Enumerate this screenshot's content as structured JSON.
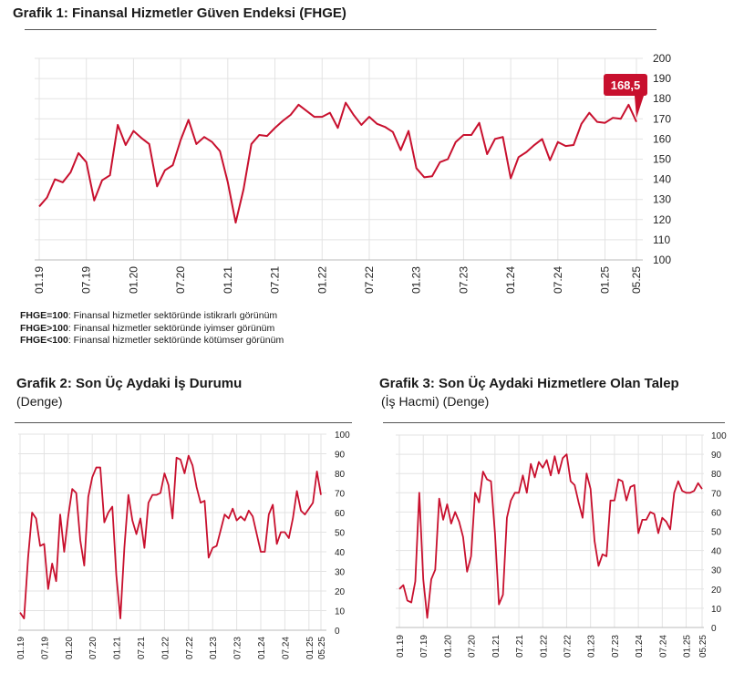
{
  "chart1_title": "Grafik 1: Finansal Hizmetler Güven Endeksi (FHGE)",
  "chart2_title": "Grafik 2: Son Üç Aydaki İş Durumu",
  "chart2_subtitle": "(Denge)",
  "chart3_title": "Grafik 3: Son Üç Aydaki Hizmetlere Olan Talep",
  "chart3_subtitle": "(İş Hacmi) (Denge)",
  "notes": [
    {
      "key": "FHGE=100",
      "text": ": Finansal hizmetler sektöründe istikrarlı görünüm"
    },
    {
      "key": "FHGE>100",
      "text": ": Finansal hizmetler sektöründe iyimser görünüm"
    },
    {
      "key": "FHGE<100",
      "text": ": Finansal hizmetler sektöründe kötümser görünüm"
    }
  ],
  "callout": "168,5",
  "colors": {
    "line": "#c8102e",
    "callout_bg": "#c8102e"
  },
  "chart_data": [
    {
      "type": "line",
      "title": "Grafik 1: Finansal Hizmetler Güven Endeksi (FHGE)",
      "x_ticks": [
        "01.19",
        "07.19",
        "01.20",
        "07.20",
        "01.21",
        "07.21",
        "01.22",
        "07.22",
        "01.23",
        "07.23",
        "01.24",
        "07.24",
        "01.25",
        "05.25"
      ],
      "ylim": [
        100,
        200
      ],
      "y_ticks": [
        100,
        110,
        120,
        130,
        140,
        150,
        160,
        170,
        180,
        190,
        200
      ],
      "grid": true,
      "values": [
        126.5,
        131,
        140,
        138.5,
        143.5,
        153,
        148.5,
        129.5,
        139.5,
        142,
        167,
        157,
        164,
        160.5,
        157.5,
        136.5,
        144.5,
        147,
        159.5,
        169.5,
        157.5,
        161,
        158.5,
        154,
        138.5,
        118.5,
        135,
        157.5,
        162,
        161.5,
        165.5,
        169,
        172,
        177,
        174,
        171,
        171,
        173,
        165.5,
        178,
        172,
        167,
        171,
        167.5,
        166,
        163.5,
        154.5,
        164,
        145.5,
        141,
        141.5,
        148.5,
        150,
        158.5,
        162,
        162,
        168,
        152.5,
        160,
        161,
        140.5,
        151,
        153.5,
        157,
        160,
        149.5,
        158.5,
        156.5,
        157,
        167.5,
        173,
        168.5,
        168,
        170.5,
        170,
        177,
        168.5
      ]
    },
    {
      "type": "line",
      "title": "Grafik 2: Son Üç Aydaki İş Durumu",
      "x_ticks": [
        "01.19",
        "07.19",
        "01.20",
        "07.20",
        "01.21",
        "07.21",
        "01.22",
        "07.22",
        "01.23",
        "07.23",
        "01.24",
        "07.24",
        "01.25",
        "05.25"
      ],
      "ylim": [
        0,
        100
      ],
      "y_ticks": [
        0,
        10,
        20,
        30,
        40,
        50,
        60,
        70,
        80,
        90,
        100
      ],
      "grid": true,
      "values": [
        9,
        6,
        37,
        60,
        57,
        43,
        44,
        21,
        34,
        25,
        59,
        40,
        58,
        72,
        70,
        46,
        33,
        68,
        78,
        83,
        83,
        55,
        60,
        63,
        28,
        6,
        42,
        69,
        56,
        49,
        57,
        42,
        65,
        69,
        69,
        70,
        80,
        74,
        57,
        88,
        87,
        80,
        89,
        84,
        73,
        65,
        66,
        37,
        42,
        43,
        51,
        59,
        57,
        62,
        56,
        58,
        56,
        61,
        58,
        49,
        40,
        40,
        59,
        64,
        44,
        50,
        50,
        47,
        57,
        71,
        61,
        59,
        62,
        65,
        81,
        69
      ]
    },
    {
      "type": "line",
      "title": "Grafik 3: Son Üç Aydaki Hizmetlere Olan Talep",
      "x_ticks": [
        "01.19",
        "07.19",
        "01.20",
        "07.20",
        "01.21",
        "07.21",
        "01.22",
        "07.22",
        "01.23",
        "07.23",
        "01.24",
        "07.24",
        "01.25",
        "05.25"
      ],
      "ylim": [
        0,
        100
      ],
      "y_ticks": [
        0,
        10,
        20,
        30,
        40,
        50,
        60,
        70,
        80,
        90,
        100
      ],
      "grid": true,
      "values": [
        20,
        22,
        14,
        13,
        24,
        70,
        25,
        5,
        25,
        30,
        67,
        56,
        64,
        54,
        60,
        55,
        47,
        29,
        37,
        70,
        65,
        81,
        77,
        76,
        49,
        12,
        17,
        57,
        66,
        70,
        70,
        79,
        70,
        85,
        78,
        86,
        83,
        87,
        79,
        89,
        80,
        88,
        90,
        76,
        74,
        65,
        57,
        80,
        72,
        45,
        32,
        38,
        37,
        66,
        66,
        77,
        76,
        66,
        73,
        74,
        49,
        56,
        56,
        60,
        59,
        49,
        57,
        55,
        51,
        70,
        76,
        71,
        70,
        70,
        71,
        75,
        72
      ]
    }
  ]
}
